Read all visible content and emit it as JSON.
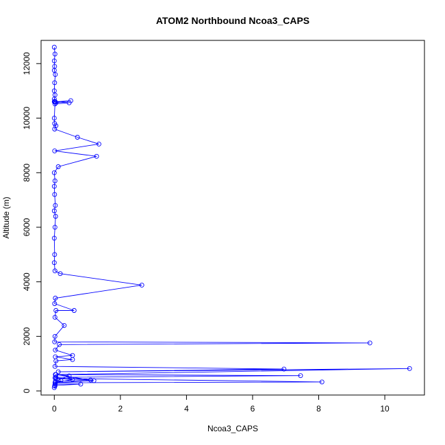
{
  "chart_data": {
    "type": "line",
    "title": "ATOM2 Northbound Ncoa3_CAPS",
    "xlabel": "Ncoa3_CAPS",
    "ylabel": "Altitude (m)",
    "xlim": [
      -0.4,
      11.2
    ],
    "ylim": [
      -150,
      12850
    ],
    "x_ticks": [
      0,
      2,
      4,
      6,
      8,
      10
    ],
    "y_ticks": [
      0,
      2000,
      4000,
      6000,
      8000,
      10000,
      12000
    ],
    "color": "#0000ff",
    "grid": false,
    "legend": "none",
    "series": [
      {
        "x": [
          0,
          0.02,
          0,
          0.01,
          0,
          0.03,
          0.01,
          0,
          0.02,
          0,
          0.01,
          0,
          0.02,
          0.05,
          0.5,
          0.03,
          0.45,
          0.02,
          0,
          0.01,
          0.05,
          0.01,
          0.7,
          1.35,
          0.01,
          1.28,
          0.12,
          0,
          0.02,
          0,
          0.01,
          0.03,
          0,
          0.04,
          0.02,
          0,
          0.01,
          0,
          0.02,
          0.18,
          2.65,
          0.03,
          0.01,
          0.6,
          0.05,
          0.02,
          0.3,
          0.02,
          0.01,
          9.55,
          0.15,
          0.03,
          0.55,
          0.03,
          0.55,
          0.05,
          0.02,
          6.95,
          0.12,
          10.75,
          0.03,
          7.45,
          0.05,
          0.02,
          1.1,
          0.03,
          0.45,
          0.05,
          1.2,
          0.03,
          0.55,
          0.05,
          8.1,
          0.02,
          0.2,
          0.03,
          0.8,
          0.01,
          0.02,
          0
        ],
        "y": [
          12600,
          12350,
          12100,
          11900,
          11750,
          11600,
          11300,
          11000,
          10850,
          10700,
          10620,
          10600,
          10610,
          10560,
          10640,
          10600,
          10560,
          10520,
          10000,
          9800,
          9720,
          9600,
          9300,
          9050,
          8800,
          8600,
          8220,
          8000,
          7700,
          7500,
          7200,
          6800,
          6600,
          6400,
          6000,
          5600,
          5000,
          4700,
          4400,
          4300,
          3880,
          3400,
          3200,
          2950,
          2950,
          2700,
          2400,
          2000,
          1800,
          1760,
          1700,
          1500,
          1300,
          1250,
          1150,
          1100,
          900,
          800,
          700,
          820,
          600,
          560,
          500,
          480,
          400,
          350,
          550,
          600,
          380,
          300,
          420,
          460,
          330,
          300,
          380,
          250,
          250,
          200,
          180,
          120
        ]
      }
    ]
  }
}
